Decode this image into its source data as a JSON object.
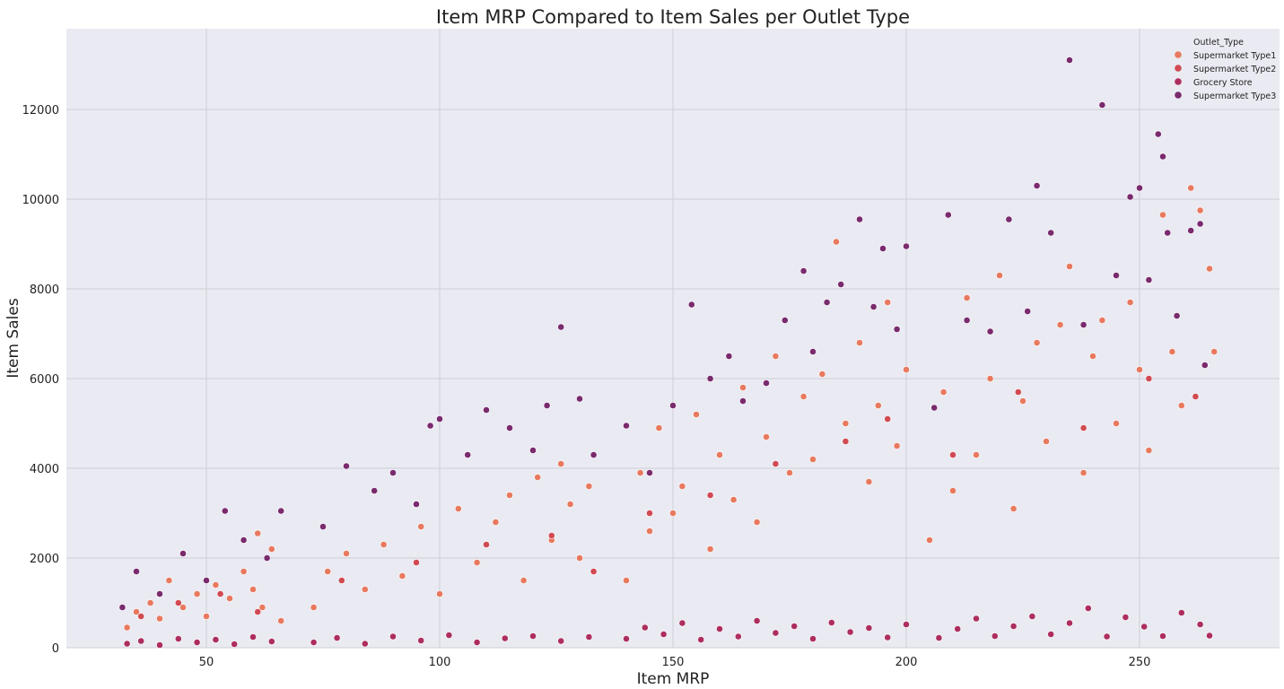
{
  "chart_data": {
    "type": "scatter",
    "title": "Item MRP Compared to Item Sales per Outlet Type",
    "xlabel": "Item MRP",
    "ylabel": "Item Sales",
    "xlim": [
      20,
      280
    ],
    "ylim": [
      0,
      13800
    ],
    "xticks": [
      50,
      100,
      150,
      200,
      250
    ],
    "yticks": [
      0,
      2000,
      4000,
      6000,
      8000,
      10000,
      12000
    ],
    "grid": true,
    "background": "#eaeaf2",
    "legend": {
      "title": "Outlet_Type",
      "position": "top-right"
    },
    "series": [
      {
        "name": "Supermarket Type1",
        "color": "#e8795e",
        "points": [
          [
            33,
            450
          ],
          [
            35,
            800
          ],
          [
            38,
            1000
          ],
          [
            40,
            650
          ],
          [
            42,
            1500
          ],
          [
            45,
            900
          ],
          [
            48,
            1200
          ],
          [
            50,
            700
          ],
          [
            52,
            1400
          ],
          [
            55,
            1100
          ],
          [
            58,
            1700
          ],
          [
            60,
            1300
          ],
          [
            62,
            900
          ],
          [
            64,
            2200
          ],
          [
            66,
            600
          ],
          [
            61,
            2550
          ],
          [
            73,
            900
          ],
          [
            76,
            1700
          ],
          [
            80,
            2100
          ],
          [
            84,
            1300
          ],
          [
            88,
            2300
          ],
          [
            92,
            1600
          ],
          [
            96,
            2700
          ],
          [
            100,
            1200
          ],
          [
            104,
            3100
          ],
          [
            108,
            1900
          ],
          [
            112,
            2800
          ],
          [
            115,
            3400
          ],
          [
            118,
            1500
          ],
          [
            121,
            3800
          ],
          [
            124,
            2400
          ],
          [
            126,
            4100
          ],
          [
            128,
            3200
          ],
          [
            130,
            2000
          ],
          [
            132,
            3600
          ],
          [
            140,
            1500
          ],
          [
            143,
            3900
          ],
          [
            145,
            2600
          ],
          [
            147,
            4900
          ],
          [
            150,
            3000
          ],
          [
            152,
            3600
          ],
          [
            155,
            5200
          ],
          [
            158,
            2200
          ],
          [
            160,
            4300
          ],
          [
            163,
            3300
          ],
          [
            165,
            5800
          ],
          [
            168,
            2800
          ],
          [
            170,
            4700
          ],
          [
            172,
            6500
          ],
          [
            175,
            3900
          ],
          [
            178,
            5600
          ],
          [
            180,
            4200
          ],
          [
            182,
            6100
          ],
          [
            185,
            9050
          ],
          [
            187,
            5000
          ],
          [
            190,
            6800
          ],
          [
            192,
            3700
          ],
          [
            194,
            5400
          ],
          [
            196,
            7700
          ],
          [
            198,
            4500
          ],
          [
            200,
            6200
          ],
          [
            205,
            2400
          ],
          [
            208,
            5700
          ],
          [
            210,
            3500
          ],
          [
            213,
            7800
          ],
          [
            215,
            4300
          ],
          [
            218,
            6000
          ],
          [
            220,
            8300
          ],
          [
            223,
            3100
          ],
          [
            225,
            5500
          ],
          [
            228,
            6800
          ],
          [
            230,
            4600
          ],
          [
            233,
            7200
          ],
          [
            235,
            8500
          ],
          [
            238,
            3900
          ],
          [
            240,
            6500
          ],
          [
            242,
            7300
          ],
          [
            245,
            5000
          ],
          [
            248,
            7700
          ],
          [
            250,
            6200
          ],
          [
            252,
            4400
          ],
          [
            255,
            9650
          ],
          [
            257,
            6600
          ],
          [
            259,
            5400
          ],
          [
            261,
            10250
          ],
          [
            263,
            9750
          ],
          [
            265,
            8450
          ],
          [
            266,
            6600
          ]
        ]
      },
      {
        "name": "Supermarket Type2",
        "color": "#d14a52",
        "points": [
          [
            36,
            700
          ],
          [
            44,
            1000
          ],
          [
            53,
            1200
          ],
          [
            61,
            800
          ],
          [
            79,
            1500
          ],
          [
            95,
            1900
          ],
          [
            110,
            2300
          ],
          [
            124,
            2500
          ],
          [
            133,
            1700
          ],
          [
            145,
            3000
          ],
          [
            158,
            3400
          ],
          [
            172,
            4100
          ],
          [
            187,
            4600
          ],
          [
            196,
            5100
          ],
          [
            210,
            4300
          ],
          [
            224,
            5700
          ],
          [
            238,
            4900
          ],
          [
            252,
            6000
          ],
          [
            262,
            5600
          ]
        ]
      },
      {
        "name": "Grocery Store",
        "color": "#ad2e5e",
        "points": [
          [
            33,
            90
          ],
          [
            36,
            150
          ],
          [
            40,
            60
          ],
          [
            44,
            200
          ],
          [
            48,
            120
          ],
          [
            52,
            180
          ],
          [
            56,
            80
          ],
          [
            60,
            240
          ],
          [
            64,
            140
          ],
          [
            73,
            120
          ],
          [
            78,
            220
          ],
          [
            84,
            90
          ],
          [
            90,
            250
          ],
          [
            96,
            160
          ],
          [
            102,
            280
          ],
          [
            108,
            120
          ],
          [
            114,
            210
          ],
          [
            120,
            260
          ],
          [
            126,
            150
          ],
          [
            132,
            240
          ],
          [
            140,
            200
          ],
          [
            144,
            450
          ],
          [
            148,
            300
          ],
          [
            152,
            550
          ],
          [
            156,
            180
          ],
          [
            160,
            420
          ],
          [
            164,
            250
          ],
          [
            168,
            600
          ],
          [
            172,
            330
          ],
          [
            176,
            480
          ],
          [
            180,
            200
          ],
          [
            184,
            560
          ],
          [
            188,
            350
          ],
          [
            192,
            440
          ],
          [
            196,
            230
          ],
          [
            200,
            520
          ],
          [
            207,
            220
          ],
          [
            211,
            420
          ],
          [
            215,
            650
          ],
          [
            219,
            260
          ],
          [
            223,
            480
          ],
          [
            227,
            700
          ],
          [
            231,
            300
          ],
          [
            235,
            550
          ],
          [
            239,
            880
          ],
          [
            243,
            250
          ],
          [
            247,
            680
          ],
          [
            251,
            470
          ],
          [
            255,
            260
          ],
          [
            259,
            780
          ],
          [
            263,
            520
          ],
          [
            265,
            270
          ]
        ]
      },
      {
        "name": "Supermarket Type3",
        "color": "#7a2a6e",
        "points": [
          [
            32,
            900
          ],
          [
            35,
            1700
          ],
          [
            40,
            1200
          ],
          [
            45,
            2100
          ],
          [
            50,
            1500
          ],
          [
            54,
            3050
          ],
          [
            58,
            2400
          ],
          [
            63,
            2000
          ],
          [
            66,
            3050
          ],
          [
            75,
            2700
          ],
          [
            80,
            4050
          ],
          [
            86,
            3500
          ],
          [
            90,
            3900
          ],
          [
            95,
            3200
          ],
          [
            98,
            4950
          ],
          [
            100,
            5100
          ],
          [
            106,
            4300
          ],
          [
            110,
            5300
          ],
          [
            115,
            4900
          ],
          [
            120,
            4400
          ],
          [
            123,
            5400
          ],
          [
            126,
            7150
          ],
          [
            130,
            5550
          ],
          [
            133,
            4300
          ],
          [
            140,
            4950
          ],
          [
            145,
            3900
          ],
          [
            150,
            5400
          ],
          [
            154,
            7650
          ],
          [
            158,
            6000
          ],
          [
            162,
            6500
          ],
          [
            165,
            5500
          ],
          [
            170,
            5900
          ],
          [
            174,
            7300
          ],
          [
            178,
            8400
          ],
          [
            180,
            6600
          ],
          [
            183,
            7700
          ],
          [
            186,
            8100
          ],
          [
            190,
            9550
          ],
          [
            193,
            7600
          ],
          [
            195,
            8900
          ],
          [
            198,
            7100
          ],
          [
            200,
            8950
          ],
          [
            206,
            5350
          ],
          [
            209,
            9650
          ],
          [
            213,
            7300
          ],
          [
            218,
            7050
          ],
          [
            222,
            9550
          ],
          [
            226,
            7500
          ],
          [
            228,
            10300
          ],
          [
            231,
            9250
          ],
          [
            235,
            13100
          ],
          [
            238,
            7200
          ],
          [
            242,
            12100
          ],
          [
            245,
            8300
          ],
          [
            248,
            10050
          ],
          [
            250,
            10250
          ],
          [
            252,
            8200
          ],
          [
            254,
            11450
          ],
          [
            255,
            10950
          ],
          [
            256,
            9250
          ],
          [
            258,
            7400
          ],
          [
            261,
            9300
          ],
          [
            263,
            9450
          ],
          [
            264,
            6300
          ]
        ]
      }
    ]
  }
}
